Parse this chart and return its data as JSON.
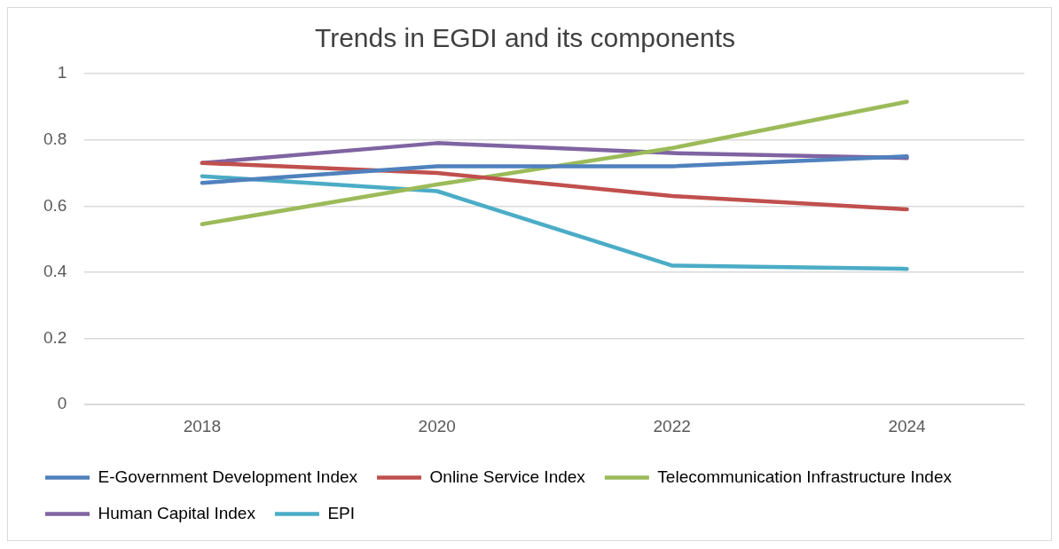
{
  "chart_data": {
    "type": "line",
    "title": "Trends in EGDI and its components",
    "categories": [
      "2018",
      "2020",
      "2022",
      "2024"
    ],
    "series": [
      {
        "name": "E-Government Development Index",
        "color": "#4f81bd",
        "values": [
          0.67,
          0.72,
          0.72,
          0.75
        ]
      },
      {
        "name": "Online Service Index",
        "color": "#c0504d",
        "values": [
          0.73,
          0.7,
          0.63,
          0.59
        ]
      },
      {
        "name": "Telecommunication Infrastructure Index",
        "color": "#9bbb59",
        "values": [
          0.545,
          0.665,
          0.775,
          0.915
        ]
      },
      {
        "name": "Human Capital Index",
        "color": "#8064a2",
        "values": [
          0.73,
          0.79,
          0.76,
          0.745
        ]
      },
      {
        "name": "EPI",
        "color": "#4bacc6",
        "values": [
          0.69,
          0.645,
          0.42,
          0.41
        ]
      }
    ],
    "ylim": [
      0,
      1
    ],
    "yticks": [
      0,
      0.2,
      0.4,
      0.6,
      0.8,
      1
    ],
    "grid": "y",
    "legend": "bottom",
    "marker": "none",
    "line_style": "solid"
  }
}
